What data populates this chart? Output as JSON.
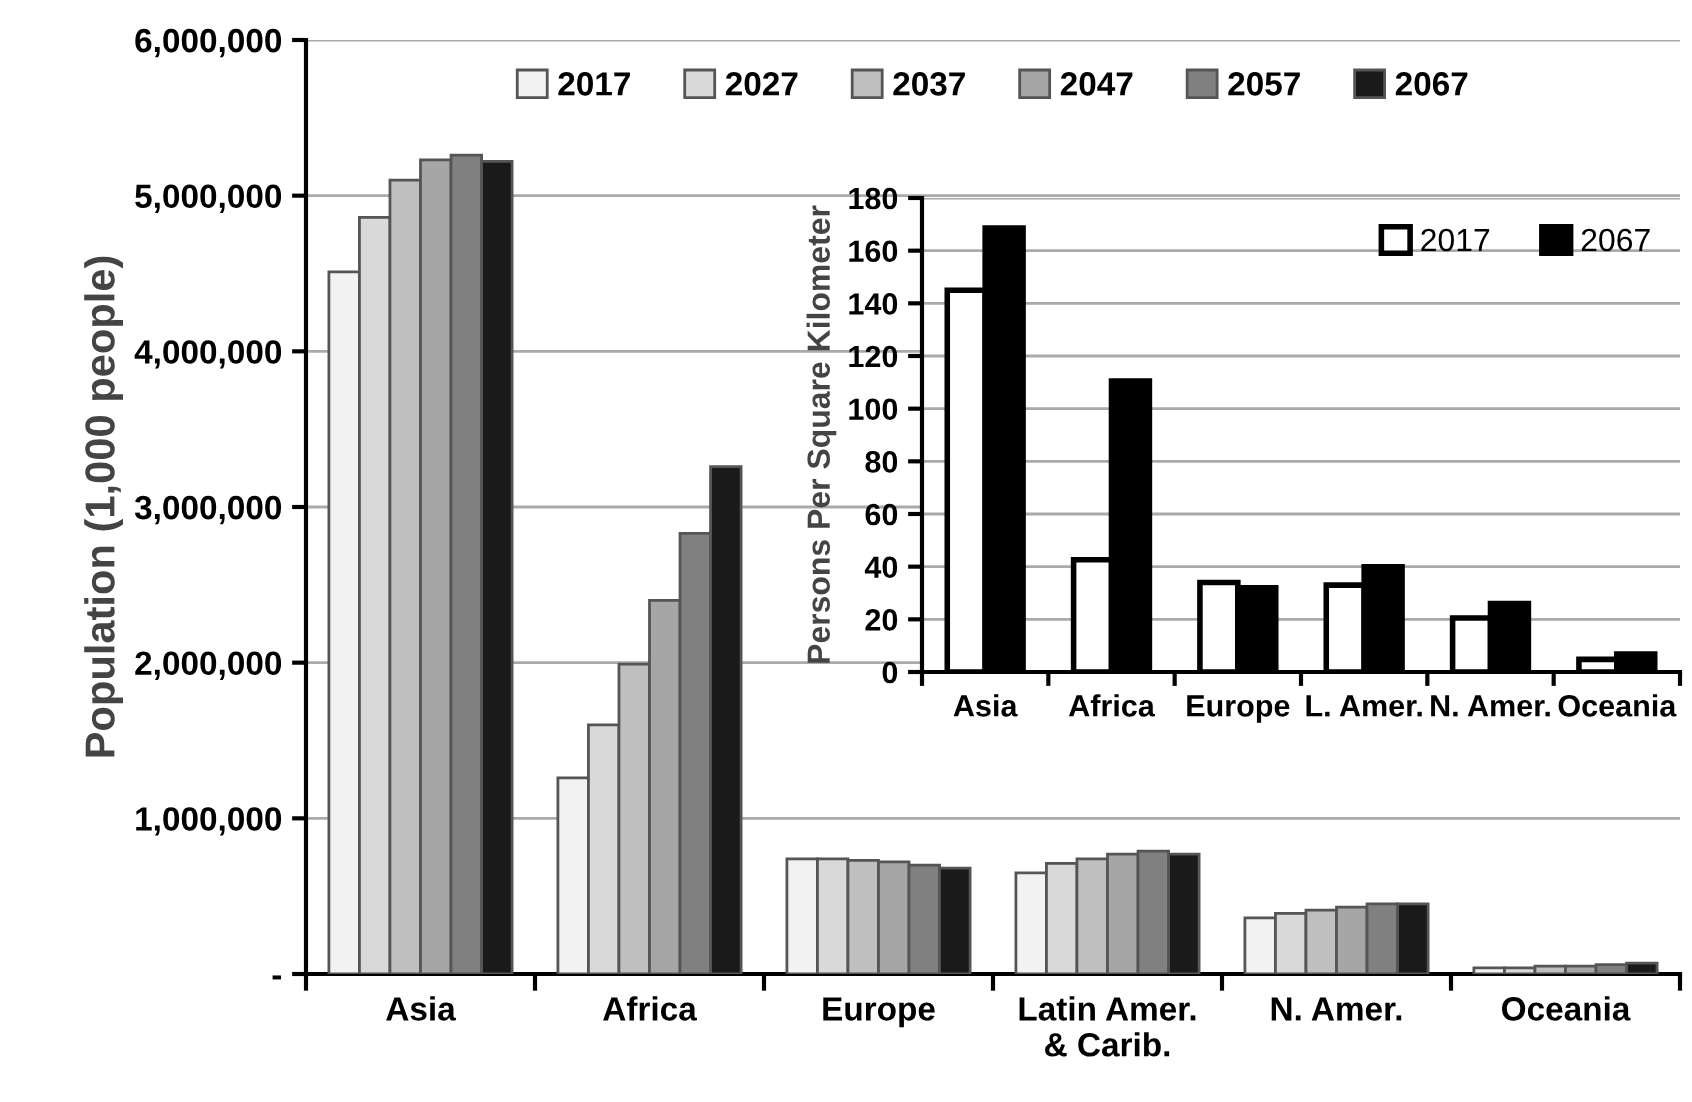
{
  "chart_data": [
    {
      "type": "bar",
      "ylabel": "Population (1,000 people)",
      "categories": [
        "Asia",
        "Africa",
        "Europe",
        "Latin Amer.\n& Carib.",
        "N. Amer.",
        "Oceania"
      ],
      "series": [
        {
          "name": "2017",
          "color": "#f2f2f2",
          "values": [
            4510000,
            1260000,
            740000,
            650000,
            360000,
            40000
          ]
        },
        {
          "name": "2027",
          "color": "#d9d9d9",
          "values": [
            4860000,
            1600000,
            740000,
            710000,
            390000,
            40000
          ]
        },
        {
          "name": "2037",
          "color": "#bfbfbf",
          "values": [
            5100000,
            1990000,
            730000,
            740000,
            410000,
            50000
          ]
        },
        {
          "name": "2047",
          "color": "#a6a6a6",
          "values": [
            5230000,
            2400000,
            720000,
            770000,
            430000,
            50000
          ]
        },
        {
          "name": "2057",
          "color": "#808080",
          "values": [
            5260000,
            2830000,
            700000,
            790000,
            450000,
            60000
          ]
        },
        {
          "name": "2067",
          "color": "#1a1a1a",
          "values": [
            5220000,
            3260000,
            680000,
            770000,
            450000,
            70000
          ]
        }
      ],
      "ylim": [
        0,
        6000000
      ],
      "yticks": [
        {
          "value": 0,
          "label": "-"
        },
        {
          "value": 1000000,
          "label": "1,000,000"
        },
        {
          "value": 2000000,
          "label": "2,000,000"
        },
        {
          "value": 3000000,
          "label": "3,000,000"
        },
        {
          "value": 4000000,
          "label": "4,000,000"
        },
        {
          "value": 5000000,
          "label": "5,000,000"
        },
        {
          "value": 6000000,
          "label": "6,000,000"
        }
      ],
      "grid": "y",
      "legend": "top"
    },
    {
      "type": "bar",
      "ylabel": "Persons Per Square Kilometer",
      "categories": [
        "Asia",
        "Africa",
        "Europe",
        "L. Amer.",
        "N. Amer.",
        "Oceania"
      ],
      "series": [
        {
          "name": "2017",
          "color": "#ffffff",
          "values": [
            145,
            42.6,
            34,
            33,
            20.5,
            4.8
          ]
        },
        {
          "name": "2067",
          "color": "#000000",
          "values": [
            168.6,
            110.5,
            32,
            40,
            26,
            6.8
          ]
        }
      ],
      "ylim": [
        0,
        180
      ],
      "yticks": [
        0,
        20,
        40,
        60,
        80,
        100,
        120,
        140,
        160,
        180
      ],
      "grid": "y",
      "legend": "top right"
    }
  ]
}
